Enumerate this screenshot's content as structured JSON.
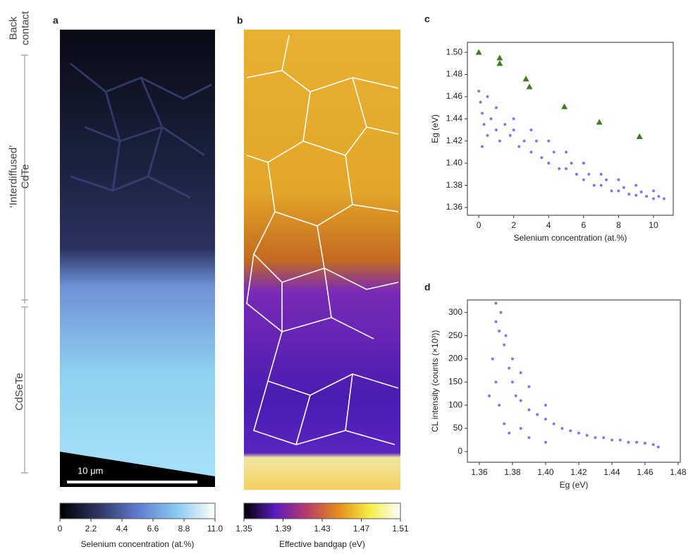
{
  "chart_data": [
    {
      "type": "image",
      "panel_label": "a",
      "colorbar_label": "Selenium concentration (at.%)",
      "clim": [
        0,
        11
      ],
      "cticks": [
        0,
        2.2,
        4.4,
        6.6,
        8.8,
        {
          "value": 11,
          "label": "11.0"
        }
      ],
      "colors": [
        "#000000",
        "#303562",
        "#5f7bd0",
        "#86c8f0",
        "#ffffff"
      ],
      "scale_bar": "10 μm",
      "side_labels": [
        [
          "Back",
          "contact"
        ],
        [
          "‘Interdiffused’",
          "CdTe"
        ],
        [
          "CdSeTe"
        ]
      ]
    },
    {
      "type": "image",
      "panel_label": "b",
      "colorbar_label": "Effective bandgap (eV)",
      "clim": [
        1.35,
        1.51
      ],
      "cticks": [
        1.35,
        1.39,
        1.43,
        1.47,
        1.51
      ],
      "colors": [
        "#000000",
        "#5a1cc0",
        "#b83a6a",
        "#e48a1c",
        "#f2ee40",
        "#ffffff"
      ]
    },
    {
      "type": "scatter",
      "panel_label": "c",
      "x_label": "Selenium concentration (at.%)",
      "y_label": "Eg (eV)",
      "xlim": [
        -0.65,
        11.13
      ],
      "xticks": [
        0,
        2,
        4,
        6,
        8,
        10
      ],
      "ylim": [
        1.353,
        1.509
      ],
      "yticks": [
        1.36,
        1.38,
        {
          "value": 1.4,
          "label": "1.40"
        },
        {
          "value": 1.42,
          "label": "1.42"
        },
        {
          "value": 1.44,
          "label": "1.44"
        },
        {
          "value": 1.46,
          "label": "1.46"
        },
        {
          "value": 1.48,
          "label": "1.48"
        },
        {
          "value": 1.5,
          "label": "1.50"
        }
      ],
      "series": [
        {
          "color": "#6a4ff0",
          "marker": "dot",
          "x": [
            0,
            0.1,
            0.2,
            0.3,
            0.5,
            0.7,
            1,
            1.2,
            1.5,
            1.8,
            2,
            2.3,
            2.6,
            3,
            3.3,
            3.6,
            4,
            4.3,
            4.6,
            5,
            5.3,
            5.6,
            6,
            6.3,
            6.6,
            7,
            7.3,
            7.6,
            8,
            8.3,
            8.6,
            9,
            9.3,
            9.6,
            10,
            10.3,
            10.6,
            0.2,
            0.5,
            1,
            2,
            3,
            4,
            5,
            6,
            7,
            8,
            9,
            10
          ],
          "values": [
            1.465,
            1.455,
            1.445,
            1.435,
            1.425,
            1.44,
            1.43,
            1.42,
            1.435,
            1.425,
            1.43,
            1.415,
            1.42,
            1.41,
            1.42,
            1.405,
            1.4,
            1.41,
            1.395,
            1.395,
            1.4,
            1.39,
            1.385,
            1.39,
            1.38,
            1.38,
            1.385,
            1.375,
            1.375,
            1.378,
            1.372,
            1.371,
            1.374,
            1.37,
            1.368,
            1.37,
            1.368,
            1.415,
            1.46,
            1.45,
            1.44,
            1.43,
            1.42,
            1.41,
            1.4,
            1.39,
            1.385,
            1.38,
            1.375
          ]
        },
        {
          "color": "#3f7a22",
          "marker": "triangle",
          "x": [
            0,
            1.2,
            1.2,
            2.7,
            2.9,
            4.9,
            6.9,
            9.2
          ],
          "values": [
            1.5,
            1.495,
            1.49,
            1.476,
            1.469,
            1.451,
            1.437,
            1.424
          ]
        }
      ]
    },
    {
      "type": "scatter",
      "panel_label": "d",
      "x_label": "Eg (eV)",
      "y_label": "CL intensity (counts (×10³))",
      "xlim": [
        1.3528,
        1.4813
      ],
      "xticks": [
        1.36,
        1.38,
        {
          "value": 1.4,
          "label": "1.40"
        },
        1.42,
        1.44,
        1.46,
        1.48
      ],
      "ylim": [
        -23,
        327
      ],
      "yticks": [
        0,
        50,
        100,
        150,
        200,
        250,
        300
      ],
      "series": [
        {
          "color": "#6a4ff0",
          "marker": "dot",
          "x": [
            1.366,
            1.368,
            1.37,
            1.37,
            1.372,
            1.372,
            1.375,
            1.375,
            1.378,
            1.378,
            1.38,
            1.382,
            1.385,
            1.385,
            1.39,
            1.39,
            1.395,
            1.4,
            1.4,
            1.405,
            1.41,
            1.415,
            1.42,
            1.425,
            1.43,
            1.435,
            1.44,
            1.445,
            1.45,
            1.455,
            1.46,
            1.465,
            1.468,
            1.37,
            1.373,
            1.376,
            1.38,
            1.385,
            1.39,
            1.4
          ],
          "values": [
            120,
            200,
            280,
            150,
            260,
            100,
            230,
            60,
            180,
            40,
            150,
            120,
            110,
            50,
            90,
            30,
            80,
            70,
            20,
            60,
            50,
            45,
            40,
            35,
            30,
            30,
            25,
            25,
            20,
            20,
            18,
            15,
            10,
            320,
            300,
            250,
            200,
            170,
            140,
            100
          ]
        }
      ]
    }
  ]
}
